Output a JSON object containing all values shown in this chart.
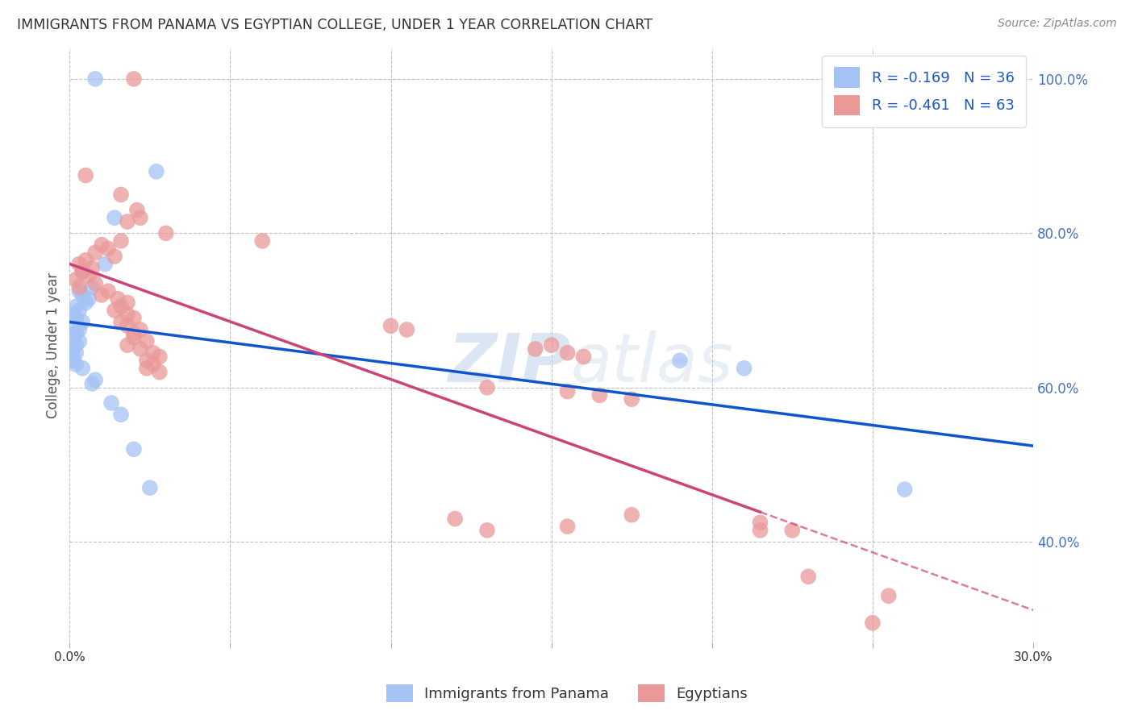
{
  "title": "IMMIGRANTS FROM PANAMA VS EGYPTIAN COLLEGE, UNDER 1 YEAR CORRELATION CHART",
  "source": "Source: ZipAtlas.com",
  "ylabel": "College, Under 1 year",
  "xmin": 0.0,
  "xmax": 0.3,
  "ymin": 0.27,
  "ymax": 1.04,
  "x_ticks": [
    0.0,
    0.05,
    0.1,
    0.15,
    0.2,
    0.25,
    0.3
  ],
  "x_tick_labels": [
    "0.0%",
    "",
    "",
    "",
    "",
    "",
    "30.0%"
  ],
  "y_ticks_right": [
    0.4,
    0.6,
    0.8,
    1.0
  ],
  "y_tick_labels_right": [
    "40.0%",
    "60.0%",
    "80.0%",
    "100.0%"
  ],
  "blue_color": "#a4c2f4",
  "pink_color": "#ea9999",
  "blue_line_color": "#1155cc",
  "pink_line_color": "#cc4477",
  "blue_scatter": [
    [
      0.008,
      1.0
    ],
    [
      0.027,
      0.88
    ],
    [
      0.014,
      0.82
    ],
    [
      0.011,
      0.76
    ],
    [
      0.004,
      0.75
    ],
    [
      0.007,
      0.73
    ],
    [
      0.003,
      0.725
    ],
    [
      0.004,
      0.72
    ],
    [
      0.006,
      0.715
    ],
    [
      0.005,
      0.71
    ],
    [
      0.002,
      0.705
    ],
    [
      0.003,
      0.7
    ],
    [
      0.001,
      0.695
    ],
    [
      0.002,
      0.69
    ],
    [
      0.004,
      0.685
    ],
    [
      0.001,
      0.68
    ],
    [
      0.003,
      0.675
    ],
    [
      0.002,
      0.67
    ],
    [
      0.001,
      0.665
    ],
    [
      0.003,
      0.66
    ],
    [
      0.002,
      0.655
    ],
    [
      0.001,
      0.65
    ],
    [
      0.002,
      0.645
    ],
    [
      0.001,
      0.64
    ],
    [
      0.001,
      0.635
    ],
    [
      0.002,
      0.63
    ],
    [
      0.004,
      0.625
    ],
    [
      0.008,
      0.61
    ],
    [
      0.007,
      0.605
    ],
    [
      0.013,
      0.58
    ],
    [
      0.016,
      0.565
    ],
    [
      0.02,
      0.52
    ],
    [
      0.19,
      0.635
    ],
    [
      0.21,
      0.625
    ],
    [
      0.26,
      0.468
    ],
    [
      0.025,
      0.47
    ]
  ],
  "pink_scatter": [
    [
      0.02,
      1.0
    ],
    [
      0.005,
      0.875
    ],
    [
      0.016,
      0.85
    ],
    [
      0.021,
      0.83
    ],
    [
      0.022,
      0.82
    ],
    [
      0.018,
      0.815
    ],
    [
      0.03,
      0.8
    ],
    [
      0.016,
      0.79
    ],
    [
      0.01,
      0.785
    ],
    [
      0.012,
      0.78
    ],
    [
      0.008,
      0.775
    ],
    [
      0.014,
      0.77
    ],
    [
      0.005,
      0.765
    ],
    [
      0.003,
      0.76
    ],
    [
      0.007,
      0.755
    ],
    [
      0.004,
      0.75
    ],
    [
      0.006,
      0.745
    ],
    [
      0.002,
      0.74
    ],
    [
      0.008,
      0.735
    ],
    [
      0.003,
      0.73
    ],
    [
      0.012,
      0.725
    ],
    [
      0.01,
      0.72
    ],
    [
      0.015,
      0.715
    ],
    [
      0.018,
      0.71
    ],
    [
      0.016,
      0.705
    ],
    [
      0.014,
      0.7
    ],
    [
      0.018,
      0.695
    ],
    [
      0.02,
      0.69
    ],
    [
      0.016,
      0.685
    ],
    [
      0.018,
      0.68
    ],
    [
      0.022,
      0.675
    ],
    [
      0.02,
      0.67
    ],
    [
      0.02,
      0.665
    ],
    [
      0.024,
      0.66
    ],
    [
      0.018,
      0.655
    ],
    [
      0.022,
      0.65
    ],
    [
      0.026,
      0.645
    ],
    [
      0.028,
      0.64
    ],
    [
      0.024,
      0.635
    ],
    [
      0.026,
      0.63
    ],
    [
      0.024,
      0.625
    ],
    [
      0.028,
      0.62
    ],
    [
      0.06,
      0.79
    ],
    [
      0.1,
      0.68
    ],
    [
      0.105,
      0.675
    ],
    [
      0.15,
      0.655
    ],
    [
      0.145,
      0.65
    ],
    [
      0.155,
      0.645
    ],
    [
      0.16,
      0.64
    ],
    [
      0.13,
      0.6
    ],
    [
      0.155,
      0.595
    ],
    [
      0.165,
      0.59
    ],
    [
      0.175,
      0.585
    ],
    [
      0.12,
      0.43
    ],
    [
      0.175,
      0.435
    ],
    [
      0.155,
      0.42
    ],
    [
      0.13,
      0.415
    ],
    [
      0.215,
      0.425
    ],
    [
      0.215,
      0.415
    ],
    [
      0.23,
      0.355
    ],
    [
      0.225,
      0.415
    ],
    [
      0.25,
      0.295
    ],
    [
      0.255,
      0.33
    ]
  ],
  "legend_blue_label": "R = -0.169   N = 36",
  "legend_pink_label": "R = -0.461   N = 63",
  "bottom_legend_blue": "Immigrants from Panama",
  "bottom_legend_pink": "Egyptians",
  "watermark_zip": "ZIP",
  "watermark_atlas": "atlas",
  "background_color": "#ffffff",
  "grid_color": "#bbbbbb"
}
